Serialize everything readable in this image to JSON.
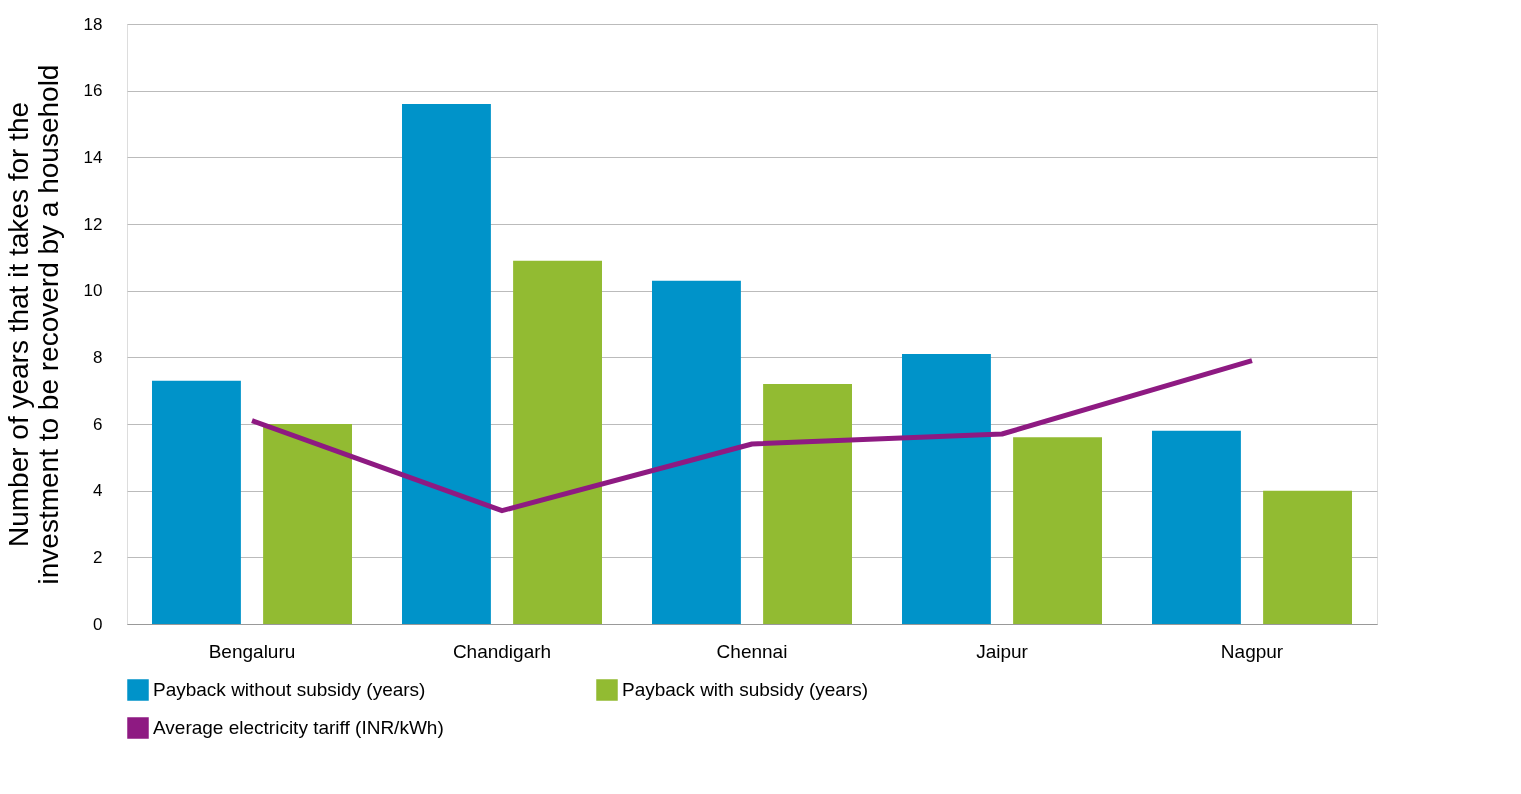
{
  "chart_data": {
    "type": "bar",
    "ylabel": "Number of years that it takes for the investment to be recoverd by a household",
    "categories": [
      "Bengaluru",
      "Chandigarh",
      "Chennai",
      "Jaipur",
      "Nagpur"
    ],
    "series": [
      {
        "name": "Payback without subsidy (years)",
        "color": "#0093c9",
        "values": [
          7.3,
          15.6,
          10.3,
          8.1,
          5.8
        ]
      },
      {
        "name": "Payback with subsidy (years)",
        "color": "#92bb32",
        "values": [
          6.0,
          10.9,
          7.2,
          5.6,
          4.0
        ]
      },
      {
        "name": "Average electricity tariff (INR/kWh)",
        "color": "#8e1a82",
        "type": "line",
        "values": [
          6.1,
          3.4,
          5.4,
          5.7,
          7.9
        ]
      }
    ],
    "ylim": [
      0,
      18
    ],
    "yticks": [
      0,
      2,
      4,
      6,
      8,
      10,
      12,
      14,
      16,
      18
    ],
    "grid": "y",
    "legend": "bottom"
  }
}
